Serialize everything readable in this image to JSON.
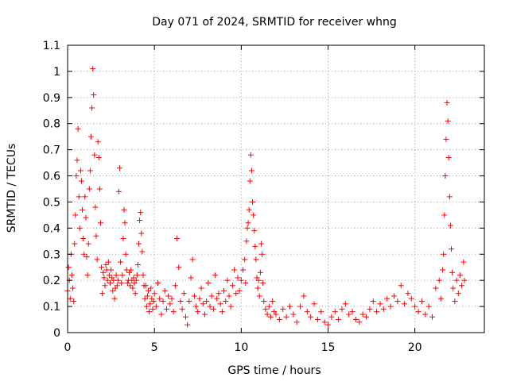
{
  "chart_data": {
    "type": "scatter",
    "title": "Day 071 of 2024, SRMTID for receiver whng",
    "xlabel": "GPS time / hours",
    "ylabel": "SRMTID / TECUs",
    "xlim": [
      0,
      24
    ],
    "ylim": [
      0,
      1.1
    ],
    "xticks": [
      0,
      5,
      10,
      15,
      20
    ],
    "xtick_labels": [
      "0",
      "5",
      "10",
      "15",
      "20"
    ],
    "yticks": [
      0,
      0.1,
      0.2,
      0.3,
      0.4,
      0.5,
      0.6,
      0.7,
      0.8,
      0.9,
      1,
      1.1
    ],
    "ytick_labels": [
      "0",
      "0.1",
      "0.2",
      "0.3",
      "0.4",
      "0.5",
      "0.6",
      "0.7",
      "0.8",
      "0.9",
      "1",
      "1.1"
    ],
    "grid": true,
    "marker": "+",
    "color": "#ff0000",
    "series": [
      {
        "name": "SRMTID",
        "points": [
          [
            0.0,
            0.16
          ],
          [
            0.05,
            0.25
          ],
          [
            0.1,
            0.2
          ],
          [
            0.15,
            0.13
          ],
          [
            0.2,
            0.3
          ],
          [
            0.25,
            0.22
          ],
          [
            0.3,
            0.17
          ],
          [
            0.35,
            0.12
          ],
          [
            0.4,
            0.34
          ],
          [
            0.45,
            0.45
          ],
          [
            0.5,
            0.6
          ],
          [
            0.55,
            0.66
          ],
          [
            0.6,
            0.78
          ],
          [
            0.65,
            0.52
          ],
          [
            0.7,
            0.4
          ],
          [
            0.75,
            0.62
          ],
          [
            0.8,
            0.58
          ],
          [
            0.85,
            0.47
          ],
          [
            0.9,
            0.36
          ],
          [
            0.95,
            0.3
          ],
          [
            1.0,
            0.52
          ],
          [
            1.05,
            0.44
          ],
          [
            1.1,
            0.29
          ],
          [
            1.15,
            0.22
          ],
          [
            1.2,
            0.34
          ],
          [
            1.25,
            0.55
          ],
          [
            1.3,
            0.62
          ],
          [
            1.35,
            0.75
          ],
          [
            1.4,
            0.86
          ],
          [
            1.45,
            1.01
          ],
          [
            1.5,
            0.91
          ],
          [
            1.55,
            0.68
          ],
          [
            1.6,
            0.48
          ],
          [
            1.65,
            0.37
          ],
          [
            1.7,
            0.28
          ],
          [
            1.75,
            0.73
          ],
          [
            1.8,
            0.67
          ],
          [
            1.85,
            0.55
          ],
          [
            1.9,
            0.42
          ],
          [
            1.95,
            0.25
          ],
          [
            2.0,
            0.15
          ],
          [
            2.05,
            0.23
          ],
          [
            2.1,
            0.21
          ],
          [
            2.15,
            0.18
          ],
          [
            2.2,
            0.26
          ],
          [
            2.25,
            0.24
          ],
          [
            2.3,
            0.2
          ],
          [
            2.35,
            0.27
          ],
          [
            2.4,
            0.22
          ],
          [
            2.45,
            0.19
          ],
          [
            2.5,
            0.24
          ],
          [
            2.55,
            0.21
          ],
          [
            2.6,
            0.16
          ],
          [
            2.65,
            0.2
          ],
          [
            2.7,
            0.13
          ],
          [
            2.75,
            0.17
          ],
          [
            2.8,
            0.22
          ],
          [
            2.85,
            0.18
          ],
          [
            2.9,
            0.2
          ],
          [
            2.95,
            0.54
          ],
          [
            3.0,
            0.63
          ],
          [
            3.05,
            0.27
          ],
          [
            3.1,
            0.19
          ],
          [
            3.15,
            0.22
          ],
          [
            3.2,
            0.36
          ],
          [
            3.25,
            0.47
          ],
          [
            3.3,
            0.42
          ],
          [
            3.35,
            0.3
          ],
          [
            3.4,
            0.24
          ],
          [
            3.45,
            0.19
          ],
          [
            3.5,
            0.2
          ],
          [
            3.55,
            0.23
          ],
          [
            3.6,
            0.18
          ],
          [
            3.65,
            0.24
          ],
          [
            3.7,
            0.2
          ],
          [
            3.75,
            0.17
          ],
          [
            3.8,
            0.21
          ],
          [
            3.85,
            0.19
          ],
          [
            3.9,
            0.15
          ],
          [
            3.95,
            0.2
          ],
          [
            4.0,
            0.22
          ],
          [
            4.05,
            0.26
          ],
          [
            4.1,
            0.34
          ],
          [
            4.15,
            0.43
          ],
          [
            4.2,
            0.46
          ],
          [
            4.25,
            0.38
          ],
          [
            4.3,
            0.31
          ],
          [
            4.35,
            0.22
          ],
          [
            4.4,
            0.18
          ],
          [
            4.45,
            0.13
          ],
          [
            4.5,
            0.18
          ],
          [
            4.55,
            0.1
          ],
          [
            4.6,
            0.14
          ],
          [
            4.65,
            0.16
          ],
          [
            4.7,
            0.08
          ],
          [
            4.75,
            0.11
          ],
          [
            4.8,
            0.17
          ],
          [
            4.85,
            0.13
          ],
          [
            4.9,
            0.09
          ],
          [
            4.95,
            0.12
          ],
          [
            5.0,
            0.15
          ],
          [
            5.1,
            0.1
          ],
          [
            5.2,
            0.19
          ],
          [
            5.3,
            0.13
          ],
          [
            5.4,
            0.07
          ],
          [
            5.5,
            0.12
          ],
          [
            5.6,
            0.16
          ],
          [
            5.7,
            0.09
          ],
          [
            5.8,
            0.14
          ],
          [
            5.9,
            0.11
          ],
          [
            6.0,
            0.13
          ],
          [
            6.1,
            0.08
          ],
          [
            6.2,
            0.18
          ],
          [
            6.3,
            0.36
          ],
          [
            6.4,
            0.25
          ],
          [
            6.5,
            0.12
          ],
          [
            6.6,
            0.09
          ],
          [
            6.7,
            0.15
          ],
          [
            6.8,
            0.06
          ],
          [
            6.9,
            0.03
          ],
          [
            7.0,
            0.12
          ],
          [
            7.1,
            0.21
          ],
          [
            7.2,
            0.28
          ],
          [
            7.3,
            0.14
          ],
          [
            7.4,
            0.1
          ],
          [
            7.5,
            0.08
          ],
          [
            7.6,
            0.13
          ],
          [
            7.7,
            0.17
          ],
          [
            7.8,
            0.11
          ],
          [
            7.9,
            0.07
          ],
          [
            8.0,
            0.12
          ],
          [
            8.1,
            0.19
          ],
          [
            8.2,
            0.1
          ],
          [
            8.3,
            0.14
          ],
          [
            8.4,
            0.09
          ],
          [
            8.5,
            0.22
          ],
          [
            8.6,
            0.13
          ],
          [
            8.7,
            0.15
          ],
          [
            8.8,
            0.11
          ],
          [
            8.9,
            0.08
          ],
          [
            9.0,
            0.16
          ],
          [
            9.1,
            0.12
          ],
          [
            9.2,
            0.2
          ],
          [
            9.3,
            0.14
          ],
          [
            9.4,
            0.1
          ],
          [
            9.5,
            0.18
          ],
          [
            9.6,
            0.24
          ],
          [
            9.7,
            0.15
          ],
          [
            9.8,
            0.21
          ],
          [
            9.9,
            0.16
          ],
          [
            10.0,
            0.2
          ],
          [
            10.1,
            0.24
          ],
          [
            10.2,
            0.28
          ],
          [
            10.25,
            0.19
          ],
          [
            10.3,
            0.35
          ],
          [
            10.35,
            0.4
          ],
          [
            10.4,
            0.42
          ],
          [
            10.45,
            0.47
          ],
          [
            10.5,
            0.58
          ],
          [
            10.55,
            0.68
          ],
          [
            10.6,
            0.62
          ],
          [
            10.65,
            0.5
          ],
          [
            10.7,
            0.45
          ],
          [
            10.75,
            0.39
          ],
          [
            10.8,
            0.33
          ],
          [
            10.85,
            0.28
          ],
          [
            10.9,
            0.21
          ],
          [
            10.95,
            0.17
          ],
          [
            11.0,
            0.2
          ],
          [
            11.05,
            0.14
          ],
          [
            11.1,
            0.23
          ],
          [
            11.15,
            0.34
          ],
          [
            11.2,
            0.3
          ],
          [
            11.25,
            0.19
          ],
          [
            11.3,
            0.12
          ],
          [
            11.4,
            0.09
          ],
          [
            11.5,
            0.07
          ],
          [
            11.6,
            0.1
          ],
          [
            11.7,
            0.06
          ],
          [
            11.8,
            0.12
          ],
          [
            11.9,
            0.08
          ],
          [
            12.0,
            0.07
          ],
          [
            12.2,
            0.05
          ],
          [
            12.4,
            0.09
          ],
          [
            12.6,
            0.06
          ],
          [
            12.8,
            0.1
          ],
          [
            13.0,
            0.07
          ],
          [
            13.2,
            0.04
          ],
          [
            13.4,
            0.1
          ],
          [
            13.6,
            0.14
          ],
          [
            13.8,
            0.08
          ],
          [
            14.0,
            0.06
          ],
          [
            14.2,
            0.11
          ],
          [
            14.4,
            0.05
          ],
          [
            14.6,
            0.08
          ],
          [
            14.8,
            0.04
          ],
          [
            15.0,
            0.03
          ],
          [
            15.2,
            0.06
          ],
          [
            15.4,
            0.08
          ],
          [
            15.6,
            0.05
          ],
          [
            15.8,
            0.09
          ],
          [
            16.0,
            0.11
          ],
          [
            16.2,
            0.07
          ],
          [
            16.4,
            0.08
          ],
          [
            16.6,
            0.05
          ],
          [
            16.8,
            0.04
          ],
          [
            17.0,
            0.07
          ],
          [
            17.2,
            0.06
          ],
          [
            17.4,
            0.09
          ],
          [
            17.6,
            0.12
          ],
          [
            17.8,
            0.08
          ],
          [
            18.0,
            0.11
          ],
          [
            18.2,
            0.09
          ],
          [
            18.4,
            0.13
          ],
          [
            18.6,
            0.1
          ],
          [
            18.8,
            0.14
          ],
          [
            19.0,
            0.12
          ],
          [
            19.2,
            0.18
          ],
          [
            19.4,
            0.11
          ],
          [
            19.6,
            0.15
          ],
          [
            19.8,
            0.13
          ],
          [
            20.0,
            0.1
          ],
          [
            20.2,
            0.08
          ],
          [
            20.4,
            0.12
          ],
          [
            20.6,
            0.07
          ],
          [
            20.8,
            0.1
          ],
          [
            21.0,
            0.06
          ],
          [
            21.2,
            0.17
          ],
          [
            21.4,
            0.2
          ],
          [
            21.5,
            0.13
          ],
          [
            21.6,
            0.24
          ],
          [
            21.65,
            0.3
          ],
          [
            21.7,
            0.45
          ],
          [
            21.75,
            0.6
          ],
          [
            21.8,
            0.74
          ],
          [
            21.85,
            0.88
          ],
          [
            21.9,
            0.81
          ],
          [
            21.95,
            0.67
          ],
          [
            22.0,
            0.52
          ],
          [
            22.05,
            0.41
          ],
          [
            22.1,
            0.32
          ],
          [
            22.15,
            0.23
          ],
          [
            22.2,
            0.17
          ],
          [
            22.3,
            0.12
          ],
          [
            22.4,
            0.2
          ],
          [
            22.5,
            0.15
          ],
          [
            22.6,
            0.22
          ],
          [
            22.7,
            0.18
          ],
          [
            22.8,
            0.27
          ],
          [
            22.85,
            0.2
          ]
        ]
      }
    ]
  }
}
